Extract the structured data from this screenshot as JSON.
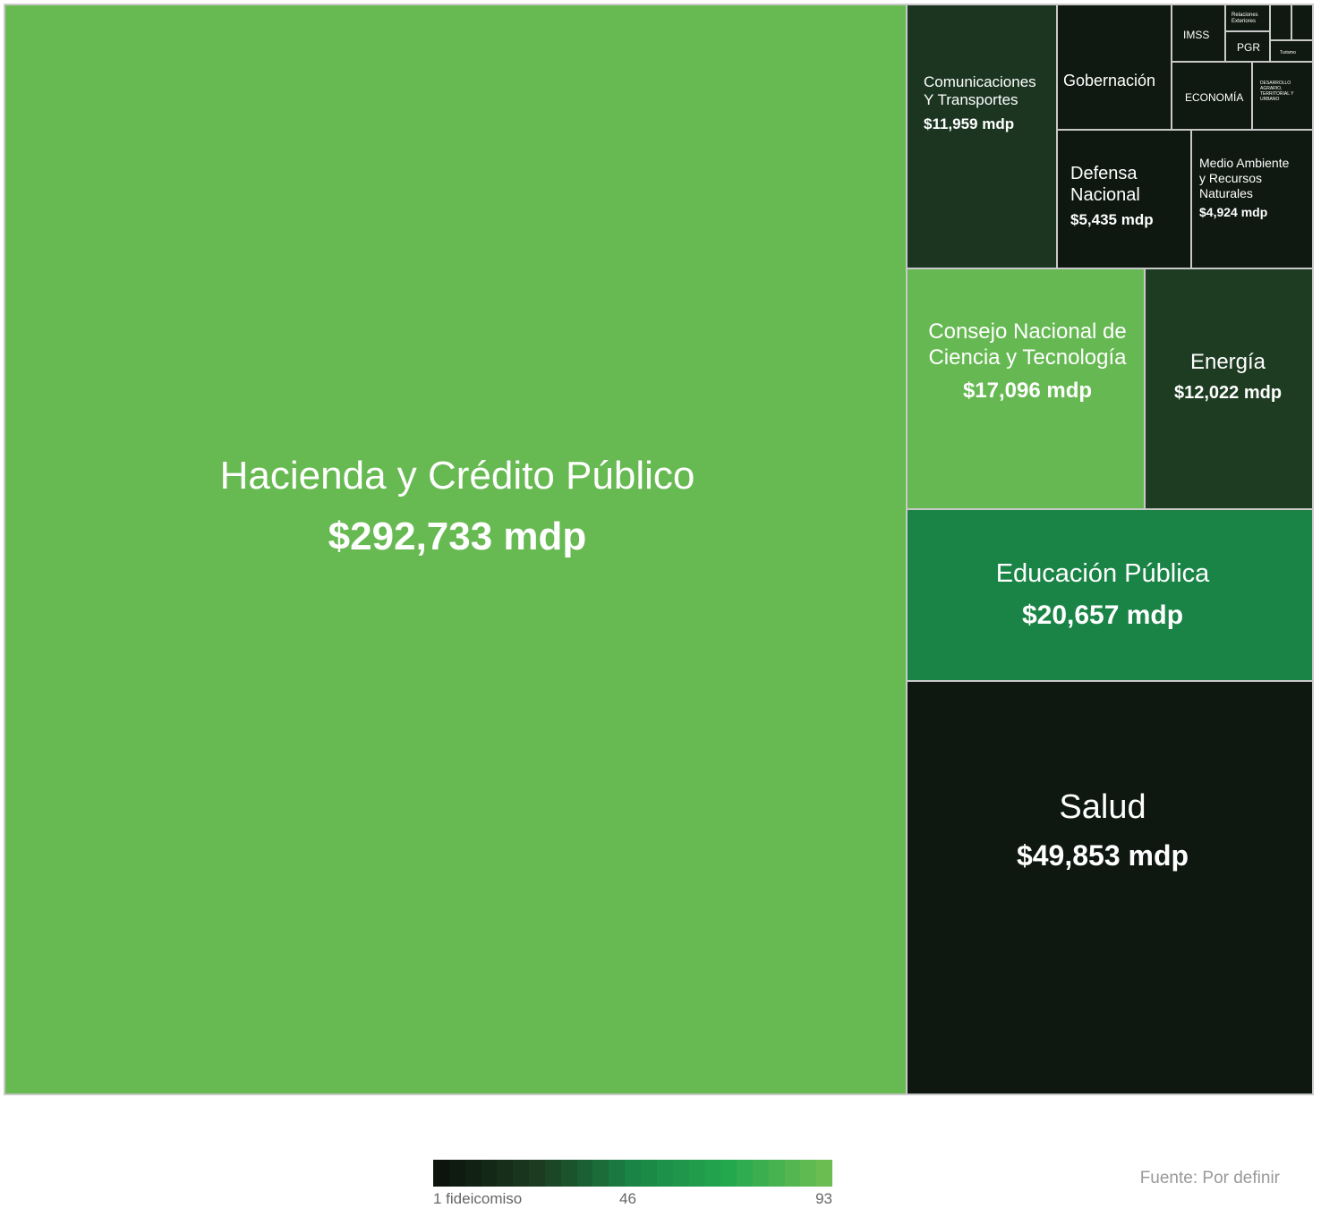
{
  "chart_data": {
    "type": "treemap",
    "unit": "mdp",
    "color_legend": {
      "colors": [
        "#0c140d",
        "#1c3b20",
        "#1a8446",
        "#23a84e",
        "#6bbd51"
      ],
      "ticks": [
        "1 fideicomiso",
        "46",
        "93"
      ]
    },
    "items": [
      {
        "name": "Hacienda y Crédito Público",
        "value_label": "$292,733 mdp",
        "value": 292733,
        "color": "#67b952"
      },
      {
        "name": "Salud",
        "value_label": "$49,853 mdp",
        "value": 49853,
        "color": "#0e1710"
      },
      {
        "name": "Educación Pública",
        "value_label": "$20,657 mdp",
        "value": 20657,
        "color": "#1a8446"
      },
      {
        "name": "Consejo Nacional de Ciencia y Tecnología",
        "name_lines": [
          "Consejo Nacional de",
          "Ciencia y Tecnología"
        ],
        "value_label": "$17,096 mdp",
        "value": 17096,
        "color": "#66b952"
      },
      {
        "name": "Energía",
        "value_label": "$12,022 mdp",
        "value": 12022,
        "color": "#1e3c22"
      },
      {
        "name": "Comunicaciones Y Transportes",
        "name_lines": [
          "Comunicaciones",
          "Y Transportes"
        ],
        "value_label": "$11,959 mdp",
        "value": 11959,
        "color": "#1b3520"
      },
      {
        "name": "Defensa Nacional",
        "name_lines": [
          "Defensa",
          "Nacional"
        ],
        "value_label": "$5,435 mdp",
        "value": 5435,
        "color": "#0e1710"
      },
      {
        "name": "Medio Ambiente y Recursos Naturales",
        "name_lines": [
          "Medio Ambiente",
          "y Recursos",
          "Naturales"
        ],
        "value_label": "$4,924 mdp",
        "value": 4924,
        "color": "#0f1811"
      },
      {
        "name": "Gobernación",
        "value_label": "",
        "color": "#0f1811"
      },
      {
        "name": "ECONOMÍA",
        "value_label": "",
        "color": "#0f1811"
      },
      {
        "name": "DESARROLLO AGRARIO, TERRITORIAL Y URBANO",
        "name_lines": [
          "DESARROLLO",
          "AGRARIO,",
          "TERRITORIAL Y",
          "URBANO"
        ],
        "value_label": "",
        "color": "#0f1811"
      },
      {
        "name": "IMSS",
        "value_label": "",
        "color": "#0f1811"
      },
      {
        "name": "PGR",
        "value_label": "",
        "color": "#0f1811"
      },
      {
        "name": "Relaciones Exteriores",
        "name_lines": [
          "Relaciones",
          "Exteriores"
        ],
        "value_label": "",
        "color": "#0f1811"
      },
      {
        "name": "Turismo",
        "value_label": "",
        "color": "#0f1811"
      },
      {
        "name": "",
        "value_label": "",
        "color": "#0f1811"
      },
      {
        "name": "",
        "value_label": "",
        "color": "#0f1811"
      }
    ]
  },
  "source": "Fuente: Por definir"
}
